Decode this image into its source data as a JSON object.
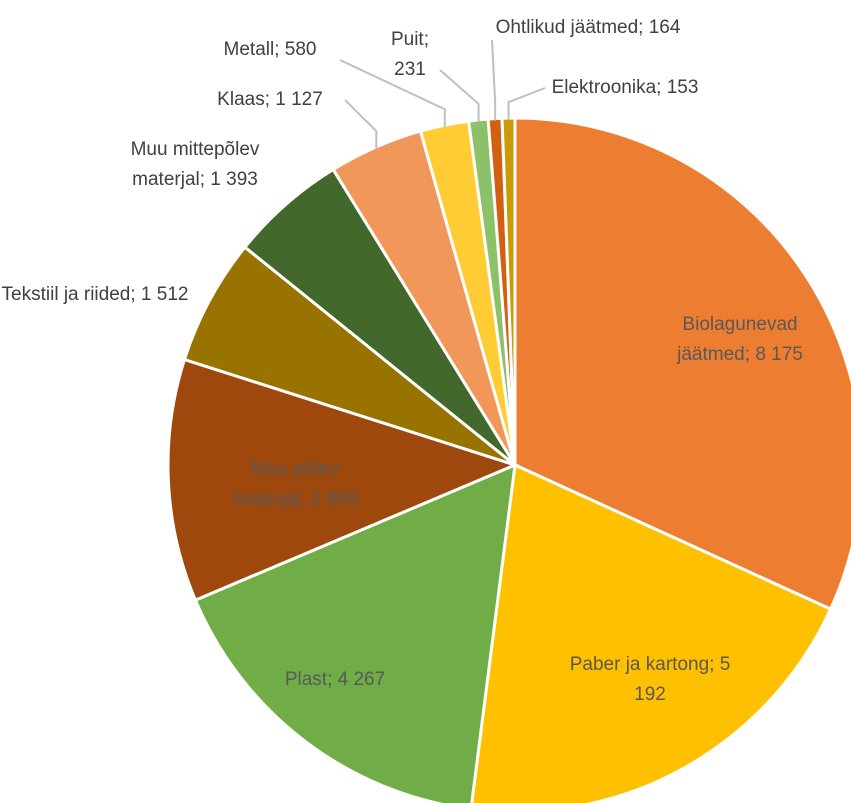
{
  "chart_data": {
    "type": "pie",
    "categories": [
      "Biolagunevad jäätmed",
      "Paber ja kartong",
      "Plast",
      "Muu põlev materjal",
      "Tekstiil ja riided",
      "Muu mittepõlev materjal",
      "Klaas",
      "Metall",
      "Puit",
      "Ohtlikud jäätmed",
      "Elektroonika"
    ],
    "values": [
      8175,
      5192,
      4267,
      2899,
      1512,
      1393,
      1127,
      580,
      231,
      164,
      153
    ],
    "value_labels": [
      "8 175",
      "5 192",
      "4 267",
      "2 899",
      "1 512",
      "1 393",
      "1 127",
      "580",
      "231",
      "164",
      "153"
    ],
    "label_separator": "; ",
    "colors": [
      "#ED7D31",
      "#FFC000",
      "#70AD47",
      "#9E480E",
      "#997300",
      "#43682B",
      "#F1975A",
      "#FFCD33",
      "#8CC168",
      "#D26012",
      "#CC9A06"
    ]
  }
}
